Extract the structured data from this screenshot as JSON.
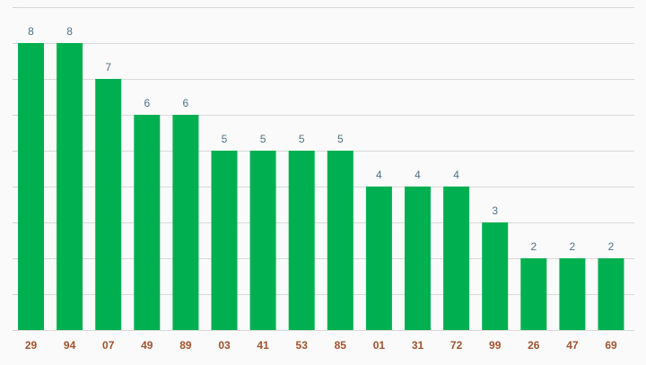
{
  "chart_data": {
    "type": "bar",
    "categories": [
      "29",
      "94",
      "07",
      "49",
      "89",
      "03",
      "41",
      "53",
      "85",
      "01",
      "31",
      "72",
      "99",
      "26",
      "47",
      "69"
    ],
    "values": [
      8,
      8,
      7,
      6,
      6,
      5,
      5,
      5,
      5,
      4,
      4,
      4,
      3,
      2,
      2,
      2
    ],
    "title": "",
    "xlabel": "",
    "ylabel": "",
    "ylim": [
      0,
      9
    ],
    "grid": true,
    "legend": "none",
    "colors": {
      "bar": "#00b050",
      "value_label": "#4f7186",
      "category_label": "#a0522d",
      "grid": "#d9d9d9",
      "background": "#fafafa"
    }
  }
}
